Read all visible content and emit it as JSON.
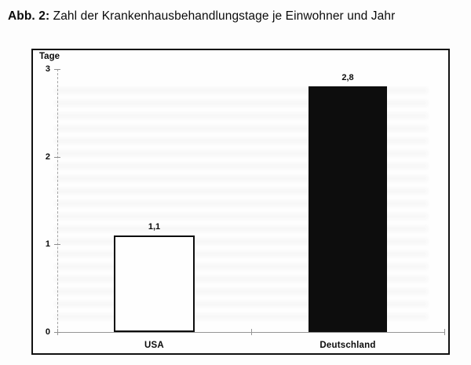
{
  "figure_caption": {
    "prefix": "Abb. 2:",
    "text": " Zahl der Krankenhausbehandlungstage je Einwohner und Jahr"
  },
  "chart_data": {
    "type": "bar",
    "title": "Zahl der Krankenhausbehandlungstage je Einwohner und Jahr",
    "y_axis_title": "Tage",
    "categories": [
      "USA",
      "Deutschland"
    ],
    "values": [
      1.1,
      2.8
    ],
    "value_labels": [
      "1,1",
      "2,8"
    ],
    "bar_fill_colors": [
      "#fefefe",
      "#0d0d0d"
    ],
    "bar_border_color": "#0d0d0d",
    "ylim": [
      0,
      3
    ],
    "yticks": [
      0,
      1,
      2,
      3
    ],
    "grid": false,
    "legend": false,
    "xlabel": "",
    "ylabel": "Tage"
  }
}
